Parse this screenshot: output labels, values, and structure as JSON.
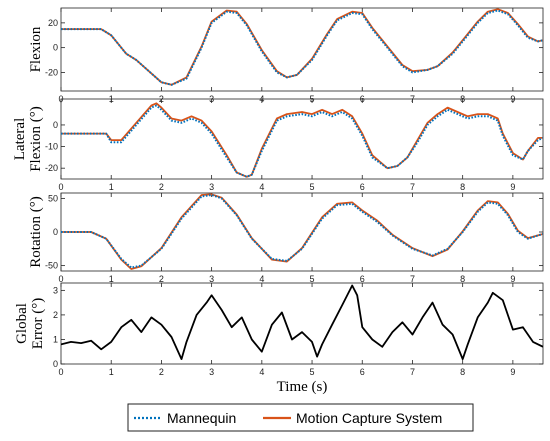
{
  "colors": {
    "mannequin": "#0072BD",
    "mocap": "#D95319",
    "error": "#000000",
    "axis": "#222222"
  },
  "xlabel": "Time (s)",
  "legend": {
    "position": "bottom-center",
    "items": [
      "Mannequin",
      "Motion Capture System"
    ]
  },
  "chart_data": [
    {
      "type": "line",
      "ylabel_lines": [
        "Flexion"
      ],
      "xlim": [
        0,
        9.6
      ],
      "ylim": [
        -35,
        32
      ],
      "xticks": [
        "0",
        "1",
        "2",
        "3",
        "4",
        "5",
        "6",
        "7",
        "8",
        "9"
      ],
      "yticks": [
        20,
        0,
        -20
      ],
      "series": [
        {
          "name": "Mannequin",
          "style": "dotted",
          "x": [
            0,
            0.8,
            1.0,
            1.3,
            1.5,
            2.0,
            2.2,
            2.5,
            2.8,
            3.0,
            3.3,
            3.5,
            3.7,
            4.0,
            4.3,
            4.5,
            4.7,
            5.0,
            5.3,
            5.5,
            5.8,
            6.0,
            6.2,
            6.5,
            6.8,
            7.0,
            7.3,
            7.5,
            7.8,
            8.0,
            8.3,
            8.5,
            8.7,
            8.9,
            9.1,
            9.3,
            9.5,
            9.6
          ],
          "y": [
            15,
            15,
            10,
            -5,
            -10,
            -28,
            -30,
            -25,
            0,
            20,
            29,
            28,
            18,
            -3,
            -20,
            -24,
            -22,
            -10,
            10,
            22,
            28,
            27,
            15,
            0,
            -15,
            -20,
            -18,
            -15,
            -5,
            5,
            20,
            28,
            30,
            27,
            18,
            8,
            5,
            6
          ]
        },
        {
          "name": "Motion Capture System",
          "style": "solid",
          "x": [
            0,
            0.8,
            1.0,
            1.3,
            1.5,
            2.0,
            2.2,
            2.5,
            2.8,
            3.0,
            3.3,
            3.5,
            3.7,
            4.0,
            4.3,
            4.5,
            4.7,
            5.0,
            5.3,
            5.5,
            5.8,
            6.0,
            6.2,
            6.5,
            6.8,
            7.0,
            7.3,
            7.5,
            7.8,
            8.0,
            8.3,
            8.5,
            8.7,
            8.9,
            9.1,
            9.3,
            9.5,
            9.6
          ],
          "y": [
            15,
            15,
            10,
            -5,
            -10,
            -28,
            -30,
            -24,
            1,
            21,
            30,
            29,
            19,
            -2,
            -19,
            -24,
            -22,
            -9,
            11,
            23,
            29,
            28,
            16,
            1,
            -14,
            -19,
            -18,
            -15,
            -4,
            6,
            21,
            29,
            31,
            28,
            19,
            9,
            5,
            6
          ]
        }
      ]
    },
    {
      "type": "line",
      "ylabel_lines": [
        "Lateral",
        "Flexion (°)"
      ],
      "xlim": [
        0,
        9.6
      ],
      "ylim": [
        -25,
        12
      ],
      "xticks": [
        "0",
        "1",
        "2",
        "3",
        "4",
        "5",
        "6",
        "7",
        "8",
        "9"
      ],
      "yticks": [
        0,
        -10,
        -20
      ],
      "series": [
        {
          "name": "Mannequin",
          "style": "dotted",
          "x": [
            0,
            0.6,
            0.9,
            1.0,
            1.2,
            1.5,
            1.8,
            1.9,
            2.0,
            2.2,
            2.4,
            2.6,
            2.8,
            3.0,
            3.3,
            3.5,
            3.7,
            3.8,
            4.0,
            4.3,
            4.5,
            4.8,
            5.0,
            5.2,
            5.4,
            5.6,
            5.8,
            6.0,
            6.2,
            6.5,
            6.7,
            6.9,
            7.1,
            7.3,
            7.5,
            7.7,
            7.9,
            8.1,
            8.3,
            8.5,
            8.7,
            8.8,
            9.0,
            9.2,
            9.3,
            9.5,
            9.6
          ],
          "y": [
            -4,
            -4,
            -4,
            -8,
            -8,
            0,
            8,
            9,
            7,
            2,
            1,
            3,
            1,
            -4,
            -15,
            -22,
            -24,
            -23,
            -12,
            2,
            4,
            5,
            4,
            6,
            4,
            6,
            3,
            -5,
            -15,
            -20,
            -19,
            -15,
            -8,
            0,
            4,
            7,
            5,
            3,
            4,
            4,
            2,
            -5,
            -14,
            -16,
            -12,
            -7,
            -6
          ]
        },
        {
          "name": "Motion Capture System",
          "style": "solid",
          "x": [
            0,
            0.6,
            0.9,
            1.0,
            1.2,
            1.5,
            1.8,
            1.9,
            2.0,
            2.2,
            2.4,
            2.6,
            2.8,
            3.0,
            3.3,
            3.5,
            3.7,
            3.8,
            4.0,
            4.3,
            4.5,
            4.8,
            5.0,
            5.2,
            5.4,
            5.6,
            5.8,
            6.0,
            6.2,
            6.5,
            6.7,
            6.9,
            7.1,
            7.3,
            7.5,
            7.7,
            7.9,
            8.1,
            8.3,
            8.5,
            8.7,
            8.8,
            9.0,
            9.2,
            9.3,
            9.5,
            9.6
          ],
          "y": [
            -4,
            -4,
            -4,
            -7,
            -7,
            1,
            9,
            10,
            8,
            3,
            2,
            4,
            2,
            -3,
            -14,
            -22,
            -24,
            -23,
            -11,
            3,
            5,
            6,
            5,
            7,
            5,
            7,
            4,
            -4,
            -14,
            -20,
            -19,
            -15,
            -7,
            1,
            5,
            8,
            6,
            4,
            5,
            5,
            3,
            -4,
            -13,
            -16,
            -12,
            -6,
            -6
          ]
        }
      ]
    },
    {
      "type": "line",
      "ylabel_lines": [
        "Rotation (°)"
      ],
      "xlim": [
        0,
        9.6
      ],
      "ylim": [
        -58,
        58
      ],
      "xticks": [
        "0",
        "1",
        "2",
        "3",
        "4",
        "5",
        "6",
        "7",
        "8",
        "9"
      ],
      "yticks": [
        50,
        0,
        -50
      ],
      "series": [
        {
          "name": "Mannequin",
          "style": "dotted",
          "x": [
            0,
            0.6,
            0.9,
            1.2,
            1.4,
            1.6,
            2.0,
            2.4,
            2.8,
            3.0,
            3.2,
            3.5,
            3.8,
            4.2,
            4.5,
            4.8,
            5.2,
            5.5,
            5.8,
            6.0,
            6.3,
            6.6,
            7.0,
            7.4,
            7.7,
            8.0,
            8.3,
            8.5,
            8.7,
            8.9,
            9.1,
            9.3,
            9.5,
            9.6
          ],
          "y": [
            0,
            0,
            -10,
            -40,
            -53,
            -50,
            -25,
            20,
            53,
            55,
            50,
            25,
            -10,
            -40,
            -43,
            -25,
            20,
            40,
            42,
            30,
            15,
            -5,
            -25,
            -35,
            -25,
            0,
            30,
            44,
            42,
            25,
            0,
            -10,
            -5,
            -3
          ]
        },
        {
          "name": "Motion Capture System",
          "style": "solid",
          "x": [
            0,
            0.6,
            0.9,
            1.2,
            1.4,
            1.6,
            2.0,
            2.4,
            2.8,
            3.0,
            3.2,
            3.5,
            3.8,
            4.2,
            4.5,
            4.8,
            5.2,
            5.5,
            5.8,
            6.0,
            6.3,
            6.6,
            7.0,
            7.4,
            7.7,
            8.0,
            8.3,
            8.5,
            8.7,
            8.9,
            9.1,
            9.3,
            9.5,
            9.6
          ],
          "y": [
            0,
            0,
            -10,
            -41,
            -55,
            -51,
            -24,
            22,
            55,
            56,
            51,
            26,
            -9,
            -41,
            -44,
            -24,
            22,
            42,
            44,
            32,
            17,
            -4,
            -24,
            -36,
            -26,
            1,
            32,
            46,
            44,
            27,
            2,
            -9,
            -5,
            -3
          ]
        }
      ]
    },
    {
      "type": "line",
      "ylabel_lines": [
        "Global",
        "Error (°)"
      ],
      "xlim": [
        0,
        9.6
      ],
      "ylim": [
        0,
        3.3
      ],
      "xticks": [
        "0",
        "1",
        "2",
        "3",
        "4",
        "5",
        "6",
        "7",
        "8",
        "9"
      ],
      "yticks": [
        3,
        2,
        1,
        0
      ],
      "series": [
        {
          "name": "Error",
          "style": "solid",
          "x": [
            0,
            0.2,
            0.4,
            0.6,
            0.8,
            1.0,
            1.2,
            1.4,
            1.6,
            1.8,
            2.0,
            2.2,
            2.4,
            2.5,
            2.7,
            2.9,
            3.0,
            3.2,
            3.4,
            3.6,
            3.8,
            4.0,
            4.2,
            4.4,
            4.6,
            4.8,
            5.0,
            5.1,
            5.2,
            5.4,
            5.6,
            5.8,
            5.9,
            6.0,
            6.2,
            6.4,
            6.6,
            6.8,
            7.0,
            7.2,
            7.4,
            7.6,
            7.8,
            8.0,
            8.1,
            8.3,
            8.5,
            8.6,
            8.8,
            9.0,
            9.2,
            9.4,
            9.6
          ],
          "y": [
            0.8,
            0.9,
            0.85,
            0.95,
            0.6,
            0.9,
            1.5,
            1.8,
            1.3,
            1.9,
            1.6,
            1.1,
            0.2,
            0.9,
            2.0,
            2.5,
            2.8,
            2.2,
            1.5,
            1.9,
            1.0,
            0.5,
            1.6,
            2.1,
            1.0,
            1.3,
            0.9,
            0.3,
            0.8,
            1.6,
            2.4,
            3.2,
            2.8,
            1.5,
            1.0,
            0.7,
            1.3,
            1.7,
            1.2,
            1.9,
            2.5,
            1.6,
            1.2,
            0.2,
            0.8,
            1.9,
            2.5,
            2.9,
            2.6,
            1.4,
            1.5,
            0.9,
            0.7
          ]
        }
      ]
    }
  ]
}
